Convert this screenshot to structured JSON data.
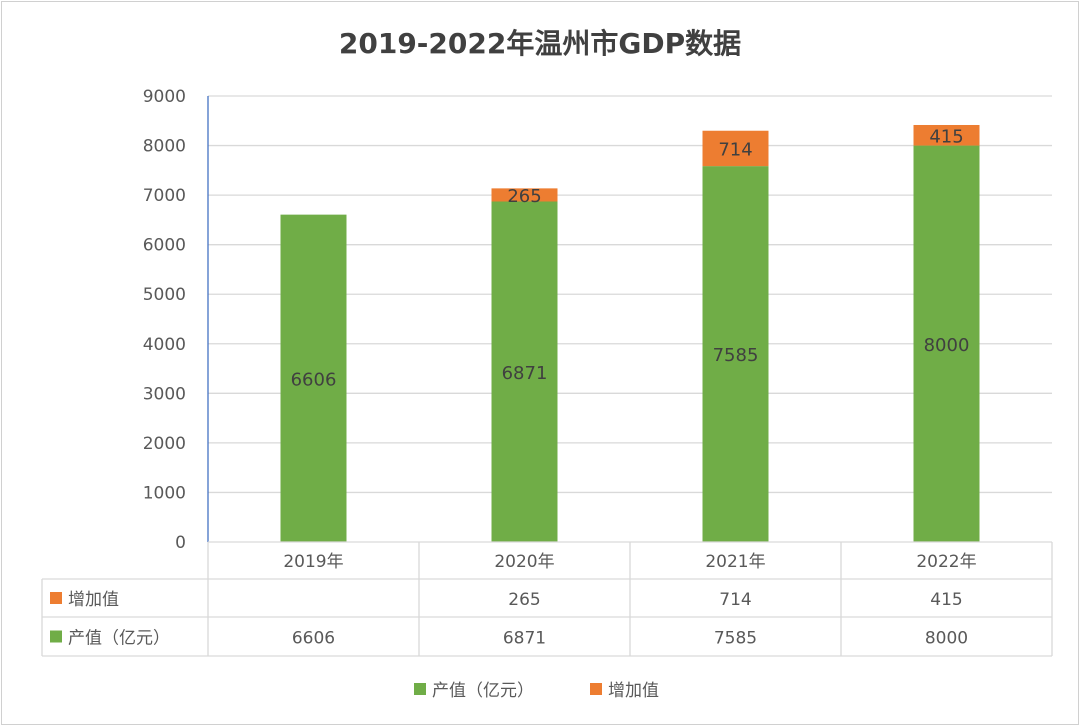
{
  "chart_data": {
    "type": "bar",
    "stacked": true,
    "title": "2019-2022年温州市GDP数据",
    "categories": [
      "2019年",
      "2020年",
      "2021年",
      "2022年"
    ],
    "series": [
      {
        "name": "产值（亿元）",
        "color": "#70ad47",
        "values": [
          6606,
          6871,
          7585,
          8000
        ]
      },
      {
        "name": "增加值",
        "color": "#ed7d31",
        "values": [
          null,
          265,
          714,
          415
        ]
      }
    ],
    "ylim": [
      0,
      9000
    ],
    "yticks": [
      0,
      1000,
      2000,
      3000,
      4000,
      5000,
      6000,
      7000,
      8000,
      9000
    ],
    "grid": true,
    "data_table": true,
    "legend": "bottom"
  }
}
